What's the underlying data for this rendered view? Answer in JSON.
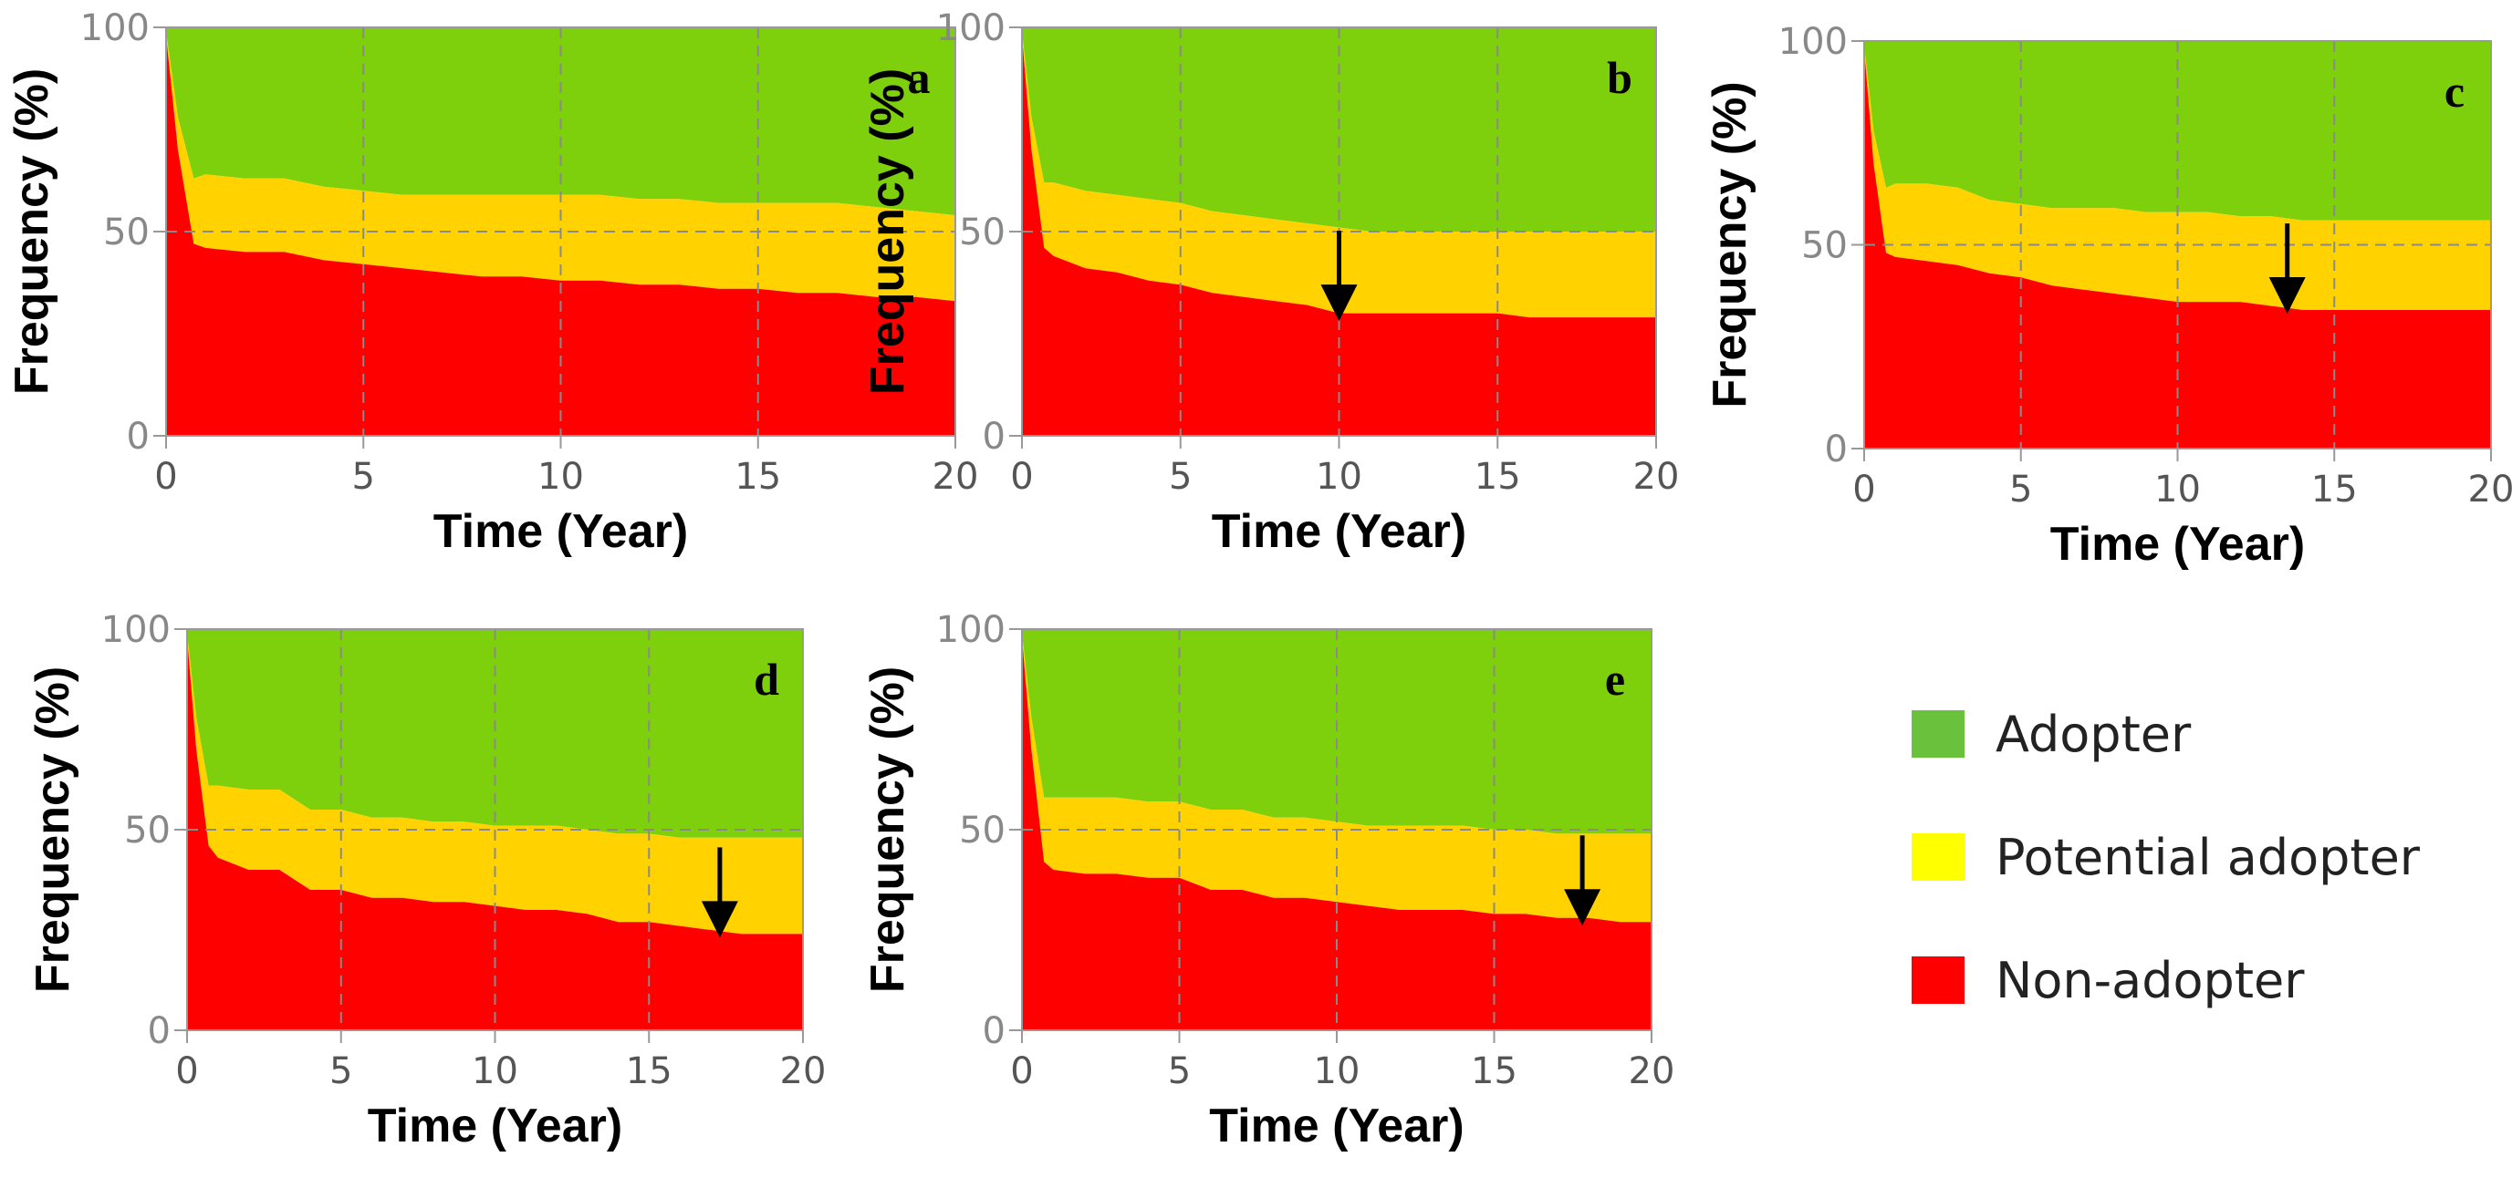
{
  "colors": {
    "adopter": "#7ecf0c",
    "potential": "#ffd200",
    "nonadopter": "#ff0000",
    "grid": "#8a8a8a",
    "axis": "#999999"
  },
  "legend": {
    "items": [
      {
        "label": "Adopter",
        "color": "#6ac23c"
      },
      {
        "label": "Potential adopter",
        "color": "#ffff00"
      },
      {
        "label": "Non-adopter",
        "color": "#ff0000"
      }
    ]
  },
  "chart_data": [
    {
      "panel": "a",
      "type": "area",
      "xlabel": "Time (Year)",
      "ylabel": "Frequency (%)",
      "xlim": [
        0,
        20
      ],
      "ylim": [
        0,
        100
      ],
      "xticks": [
        "0",
        "5",
        "10",
        "15",
        "20"
      ],
      "yticks": [
        "0",
        "50",
        "100"
      ],
      "x": [
        0,
        0.3,
        0.7,
        1,
        2,
        3,
        4,
        5,
        6,
        7,
        8,
        9,
        10,
        11,
        12,
        13,
        14,
        15,
        16,
        17,
        18,
        19,
        20
      ],
      "series": [
        {
          "name": "Non-adopter",
          "values": [
            98,
            70,
            47,
            46,
            45,
            45,
            43,
            42,
            41,
            40,
            39,
            39,
            38,
            38,
            37,
            37,
            36,
            36,
            35,
            35,
            34,
            34,
            33
          ]
        },
        {
          "name": "Potential adopter",
          "values": [
            1,
            8,
            16,
            18,
            18,
            18,
            18,
            18,
            18,
            19,
            20,
            20,
            21,
            21,
            21,
            21,
            21,
            21,
            22,
            22,
            22,
            21,
            21
          ]
        },
        {
          "name": "Adopter",
          "values": [
            1,
            22,
            37,
            36,
            37,
            37,
            39,
            40,
            41,
            41,
            41,
            41,
            41,
            41,
            42,
            42,
            43,
            43,
            43,
            43,
            44,
            45,
            46
          ]
        }
      ],
      "arrow_at_year": null
    },
    {
      "panel": "b",
      "type": "area",
      "xlabel": "Time (Year)",
      "ylabel": "Frequency (%)",
      "xlim": [
        0,
        20
      ],
      "ylim": [
        0,
        100
      ],
      "xticks": [
        "0",
        "5",
        "10",
        "15",
        "20"
      ],
      "yticks": [
        "0",
        "50",
        "100"
      ],
      "x": [
        0,
        0.3,
        0.7,
        1,
        2,
        3,
        4,
        5,
        6,
        7,
        8,
        9,
        10,
        11,
        12,
        13,
        14,
        15,
        16,
        17,
        18,
        19,
        20
      ],
      "series": [
        {
          "name": "Non-adopter",
          "values": [
            98,
            70,
            46,
            44,
            41,
            40,
            38,
            37,
            35,
            34,
            33,
            32,
            30,
            30,
            30,
            30,
            30,
            30,
            29,
            29,
            29,
            29,
            29
          ]
        },
        {
          "name": "Potential adopter",
          "values": [
            1,
            8,
            16,
            18,
            19,
            19,
            20,
            20,
            20,
            20,
            20,
            20,
            21,
            20,
            20,
            20,
            20,
            20,
            21,
            21,
            21,
            21,
            21
          ]
        },
        {
          "name": "Adopter",
          "values": [
            1,
            22,
            38,
            38,
            40,
            41,
            42,
            43,
            45,
            46,
            47,
            48,
            49,
            50,
            50,
            50,
            50,
            50,
            50,
            50,
            50,
            50,
            50
          ]
        }
      ],
      "arrow_at_year": 10
    },
    {
      "panel": "c",
      "type": "area",
      "xlabel": "Time (Year)",
      "ylabel": "Frequency (%)",
      "xlim": [
        0,
        20
      ],
      "ylim": [
        0,
        100
      ],
      "xticks": [
        "0",
        "5",
        "10",
        "15",
        "20"
      ],
      "yticks": [
        "0",
        "50",
        "100"
      ],
      "x": [
        0,
        0.3,
        0.7,
        1,
        2,
        3,
        4,
        5,
        6,
        7,
        8,
        9,
        10,
        11,
        12,
        13,
        14,
        15,
        16,
        17,
        18,
        19,
        20
      ],
      "series": [
        {
          "name": "Non-adopter",
          "values": [
            98,
            70,
            48,
            47,
            46,
            45,
            43,
            42,
            40,
            39,
            38,
            37,
            36,
            36,
            36,
            35,
            34,
            34,
            34,
            34,
            34,
            34,
            34
          ]
        },
        {
          "name": "Potential adopter",
          "values": [
            1,
            8,
            16,
            18,
            19,
            19,
            18,
            18,
            19,
            20,
            21,
            21,
            22,
            22,
            21,
            22,
            22,
            22,
            22,
            22,
            22,
            22,
            22
          ]
        },
        {
          "name": "Adopter",
          "values": [
            1,
            22,
            36,
            35,
            35,
            36,
            39,
            40,
            41,
            41,
            41,
            42,
            42,
            42,
            43,
            43,
            44,
            44,
            44,
            44,
            44,
            44,
            44
          ]
        }
      ],
      "arrow_at_year": 13.5
    },
    {
      "panel": "d",
      "type": "area",
      "xlabel": "Time (Year)",
      "ylabel": "Frequency (%)",
      "xlim": [
        0,
        20
      ],
      "ylim": [
        0,
        100
      ],
      "xticks": [
        "0",
        "5",
        "10",
        "15",
        "20"
      ],
      "yticks": [
        "0",
        "50",
        "100"
      ],
      "x": [
        0,
        0.3,
        0.7,
        1,
        2,
        3,
        4,
        5,
        6,
        7,
        8,
        9,
        10,
        11,
        12,
        13,
        14,
        15,
        16,
        17,
        18,
        19,
        20
      ],
      "series": [
        {
          "name": "Non-adopter",
          "values": [
            98,
            70,
            46,
            43,
            40,
            40,
            35,
            35,
            33,
            33,
            32,
            32,
            31,
            30,
            30,
            29,
            27,
            27,
            26,
            25,
            24,
            24,
            24
          ]
        },
        {
          "name": "Potential adopter",
          "values": [
            1,
            8,
            15,
            18,
            20,
            20,
            20,
            20,
            20,
            20,
            20,
            20,
            20,
            21,
            21,
            21,
            22,
            22,
            22,
            23,
            24,
            24,
            24
          ]
        },
        {
          "name": "Adopter",
          "values": [
            1,
            22,
            39,
            39,
            40,
            40,
            45,
            45,
            47,
            47,
            48,
            48,
            49,
            49,
            49,
            50,
            51,
            51,
            52,
            52,
            52,
            52,
            52
          ]
        }
      ],
      "arrow_at_year": 17.3
    },
    {
      "panel": "e",
      "type": "area",
      "xlabel": "Time (Year)",
      "ylabel": "Frequency (%)",
      "xlim": [
        0,
        20
      ],
      "ylim": [
        0,
        100
      ],
      "xticks": [
        "0",
        "5",
        "10",
        "15",
        "20"
      ],
      "yticks": [
        "0",
        "50",
        "100"
      ],
      "x": [
        0,
        0.3,
        0.7,
        1,
        2,
        3,
        4,
        5,
        6,
        7,
        8,
        9,
        10,
        11,
        12,
        13,
        14,
        15,
        16,
        17,
        18,
        19,
        20
      ],
      "series": [
        {
          "name": "Non-adopter",
          "values": [
            98,
            70,
            42,
            40,
            39,
            39,
            38,
            38,
            35,
            35,
            33,
            33,
            32,
            31,
            30,
            30,
            30,
            29,
            29,
            28,
            28,
            27,
            27
          ]
        },
        {
          "name": "Potential adopter",
          "values": [
            1,
            8,
            16,
            18,
            19,
            19,
            19,
            19,
            20,
            20,
            20,
            20,
            20,
            20,
            21,
            21,
            21,
            21,
            21,
            21,
            21,
            22,
            22
          ]
        },
        {
          "name": "Adopter",
          "values": [
            1,
            22,
            42,
            42,
            42,
            42,
            43,
            43,
            45,
            45,
            47,
            47,
            48,
            49,
            49,
            49,
            49,
            50,
            50,
            51,
            51,
            51,
            51
          ]
        }
      ],
      "arrow_at_year": 17.8
    }
  ]
}
